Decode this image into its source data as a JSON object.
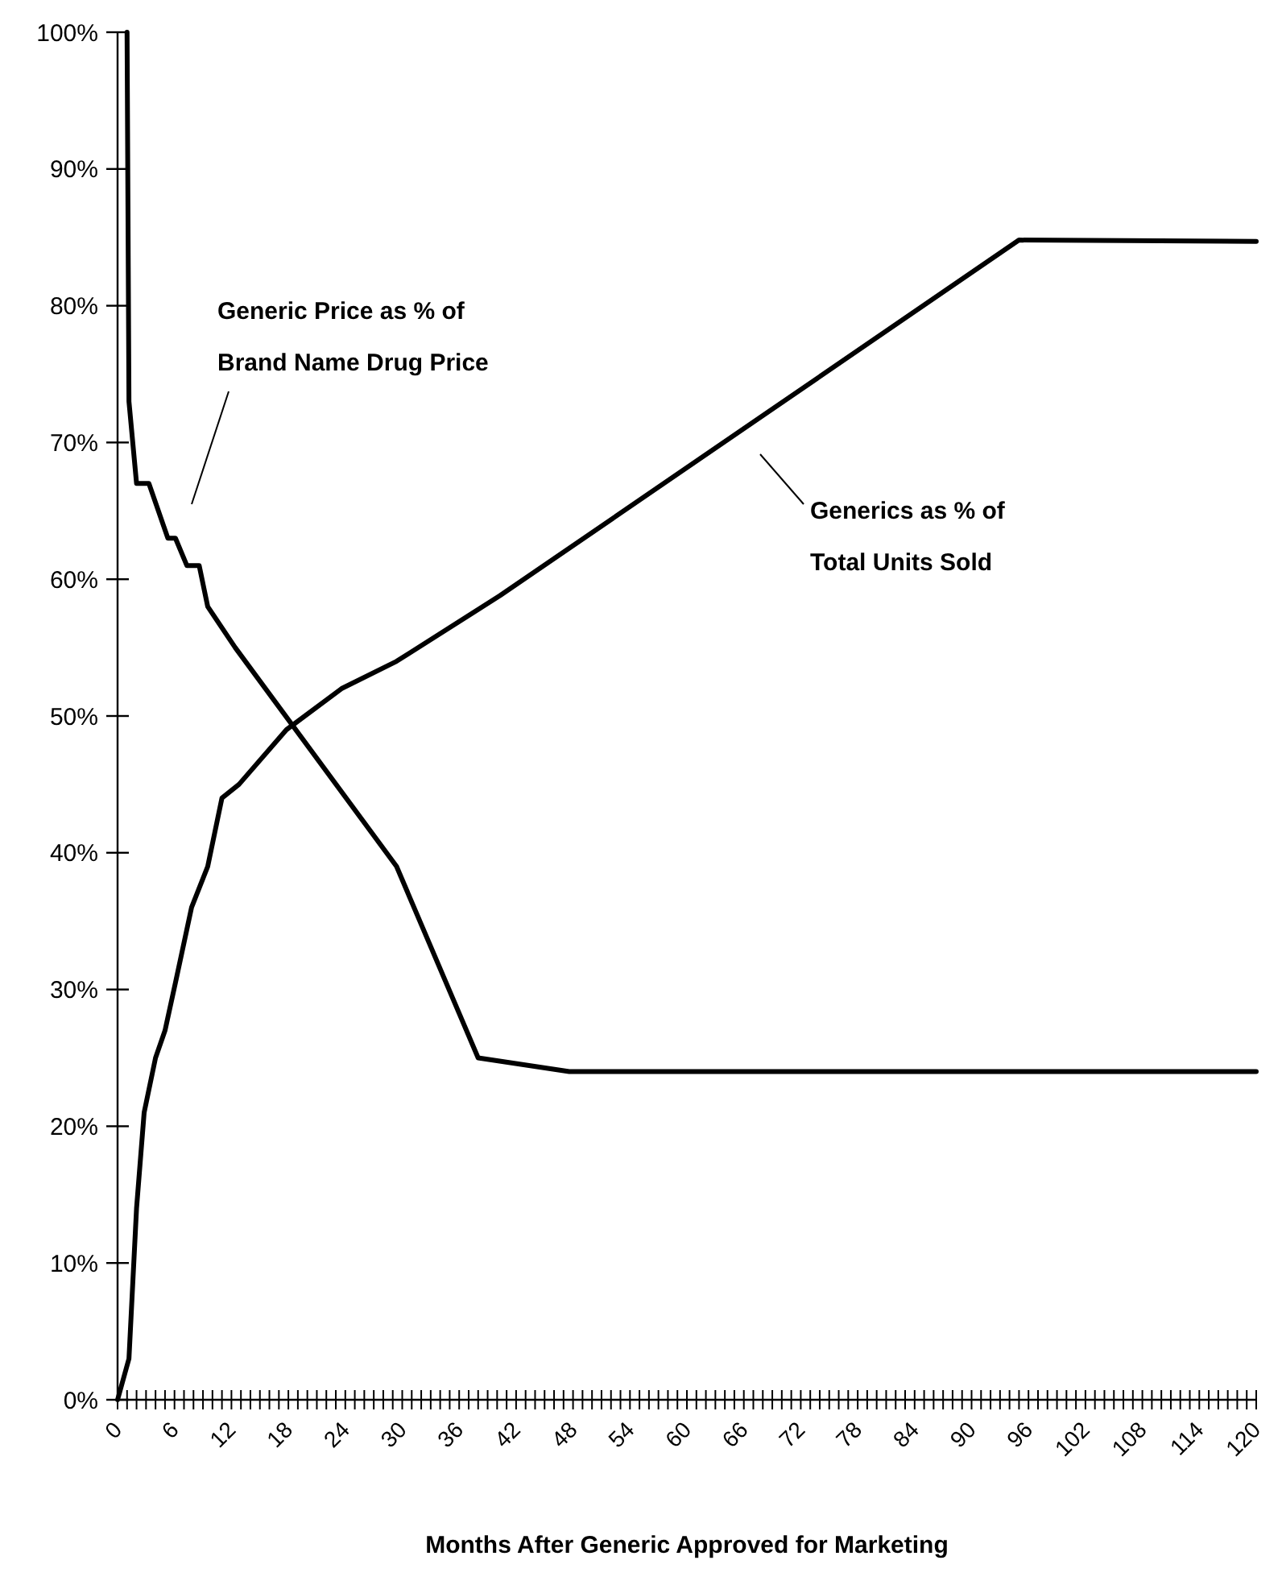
{
  "chart_data": {
    "type": "line",
    "xlabel": "Months After Generic Approved for Marketing",
    "annotations": [
      "Generic Price as % of Brand Name Drug Price",
      "Generics as % of Total Units Sold"
    ],
    "series": [
      {
        "color": "#000000",
        "x": [
          1,
          1.2,
          2,
          3.3,
          5.3,
          6.1,
          7.3,
          8.6,
          9.5,
          12.4,
          29.4,
          38,
          47.6,
          120
        ],
        "values": [
          100,
          73,
          67,
          67,
          63,
          63,
          61,
          61,
          58,
          55,
          39,
          25,
          24,
          24
        ]
      },
      {
        "color": "#000000",
        "x": [
          0,
          1.2,
          2,
          2.8,
          4,
          5,
          6.1,
          7.8,
          9.5,
          11,
          12.8,
          17.8,
          23.6,
          29.4,
          40.3,
          95,
          120
        ],
        "values": [
          0,
          3,
          14,
          21,
          25,
          27,
          30.5,
          36,
          39,
          44,
          45,
          49,
          52,
          54,
          58.8,
          84.8,
          84.7
        ]
      }
    ],
    "xlim": [
      0,
      120
    ],
    "ylim": [
      0,
      100
    ],
    "yticks": [
      {
        "value": 0,
        "label": "0%"
      },
      {
        "value": 10,
        "label": "10%"
      },
      {
        "value": 20,
        "label": "20%"
      },
      {
        "value": 30,
        "label": "30%"
      },
      {
        "value": 40,
        "label": "40%"
      },
      {
        "value": 50,
        "label": "50%"
      },
      {
        "value": 60,
        "label": "60%"
      },
      {
        "value": 70,
        "label": "70%"
      },
      {
        "value": 80,
        "label": "80%"
      },
      {
        "value": 90,
        "label": "90%"
      },
      {
        "value": 100,
        "label": "100%"
      }
    ],
    "xticks": [
      0,
      {
        "value": 1,
        "label": null
      },
      {
        "value": 2,
        "label": null
      },
      {
        "value": 3,
        "label": null
      },
      {
        "value": 4,
        "label": null
      },
      {
        "value": 5,
        "label": null
      },
      6,
      {
        "value": 7,
        "label": null
      },
      {
        "value": 8,
        "label": null
      },
      {
        "value": 9,
        "label": null
      },
      {
        "value": 10,
        "label": null
      },
      {
        "value": 11,
        "label": null
      },
      12,
      {
        "value": 13,
        "label": null
      },
      {
        "value": 14,
        "label": null
      },
      {
        "value": 15,
        "label": null
      },
      {
        "value": 16,
        "label": null
      },
      {
        "value": 17,
        "label": null
      },
      18,
      {
        "value": 19,
        "label": null
      },
      {
        "value": 20,
        "label": null
      },
      {
        "value": 21,
        "label": null
      },
      {
        "value": 22,
        "label": null
      },
      {
        "value": 23,
        "label": null
      },
      24,
      {
        "value": 25,
        "label": null
      },
      {
        "value": 26,
        "label": null
      },
      {
        "value": 27,
        "label": null
      },
      {
        "value": 28,
        "label": null
      },
      {
        "value": 29,
        "label": null
      },
      30,
      {
        "value": 31,
        "label": null
      },
      {
        "value": 32,
        "label": null
      },
      {
        "value": 33,
        "label": null
      },
      {
        "value": 34,
        "label": null
      },
      {
        "value": 35,
        "label": null
      },
      36,
      {
        "value": 37,
        "label": null
      },
      {
        "value": 38,
        "label": null
      },
      {
        "value": 39,
        "label": null
      },
      {
        "value": 40,
        "label": null
      },
      {
        "value": 41,
        "label": null
      },
      42,
      {
        "value": 43,
        "label": null
      },
      {
        "value": 44,
        "label": null
      },
      {
        "value": 45,
        "label": null
      },
      {
        "value": 46,
        "label": null
      },
      {
        "value": 47,
        "label": null
      },
      48,
      {
        "value": 49,
        "label": null
      },
      {
        "value": 50,
        "label": null
      },
      {
        "value": 51,
        "label": null
      },
      {
        "value": 52,
        "label": null
      },
      {
        "value": 53,
        "label": null
      },
      54,
      {
        "value": 55,
        "label": null
      },
      {
        "value": 56,
        "label": null
      },
      {
        "value": 57,
        "label": null
      },
      {
        "value": 58,
        "label": null
      },
      {
        "value": 59,
        "label": null
      },
      60,
      {
        "value": 61,
        "label": null
      },
      {
        "value": 62,
        "label": null
      },
      {
        "value": 63,
        "label": null
      },
      {
        "value": 64,
        "label": null
      },
      {
        "value": 65,
        "label": null
      },
      66,
      {
        "value": 67,
        "label": null
      },
      {
        "value": 68,
        "label": null
      },
      {
        "value": 69,
        "label": null
      },
      {
        "value": 70,
        "label": null
      },
      {
        "value": 71,
        "label": null
      },
      72,
      {
        "value": 73,
        "label": null
      },
      {
        "value": 74,
        "label": null
      },
      {
        "value": 75,
        "label": null
      },
      {
        "value": 76,
        "label": null
      },
      {
        "value": 77,
        "label": null
      },
      78,
      {
        "value": 79,
        "label": null
      },
      {
        "value": 80,
        "label": null
      },
      {
        "value": 81,
        "label": null
      },
      {
        "value": 82,
        "label": null
      },
      {
        "value": 83,
        "label": null
      },
      84,
      {
        "value": 85,
        "label": null
      },
      {
        "value": 86,
        "label": null
      },
      {
        "value": 87,
        "label": null
      },
      {
        "value": 88,
        "label": null
      },
      {
        "value": 89,
        "label": null
      },
      90,
      {
        "value": 91,
        "label": null
      },
      {
        "value": 92,
        "label": null
      },
      {
        "value": 93,
        "label": null
      },
      {
        "value": 94,
        "label": null
      },
      {
        "value": 95,
        "label": null
      },
      96,
      {
        "value": 97,
        "label": null
      },
      {
        "value": 98,
        "label": null
      },
      {
        "value": 99,
        "label": null
      },
      {
        "value": 100,
        "label": null
      },
      {
        "value": 101,
        "label": null
      },
      102,
      {
        "value": 103,
        "label": null
      },
      {
        "value": 104,
        "label": null
      },
      {
        "value": 105,
        "label": null
      },
      {
        "value": 106,
        "label": null
      },
      {
        "value": 107,
        "label": null
      },
      108,
      {
        "value": 109,
        "label": null
      },
      {
        "value": 110,
        "label": null
      },
      {
        "value": 111,
        "label": null
      },
      {
        "value": 112,
        "label": null
      },
      {
        "value": 113,
        "label": null
      },
      114,
      {
        "value": 115,
        "label": null
      },
      {
        "value": 116,
        "label": null
      },
      {
        "value": 117,
        "label": null
      },
      {
        "value": 118,
        "label": null
      },
      {
        "value": 119,
        "label": null
      },
      120
    ],
    "grid": false,
    "marker": "none",
    "line_style": "solid"
  }
}
